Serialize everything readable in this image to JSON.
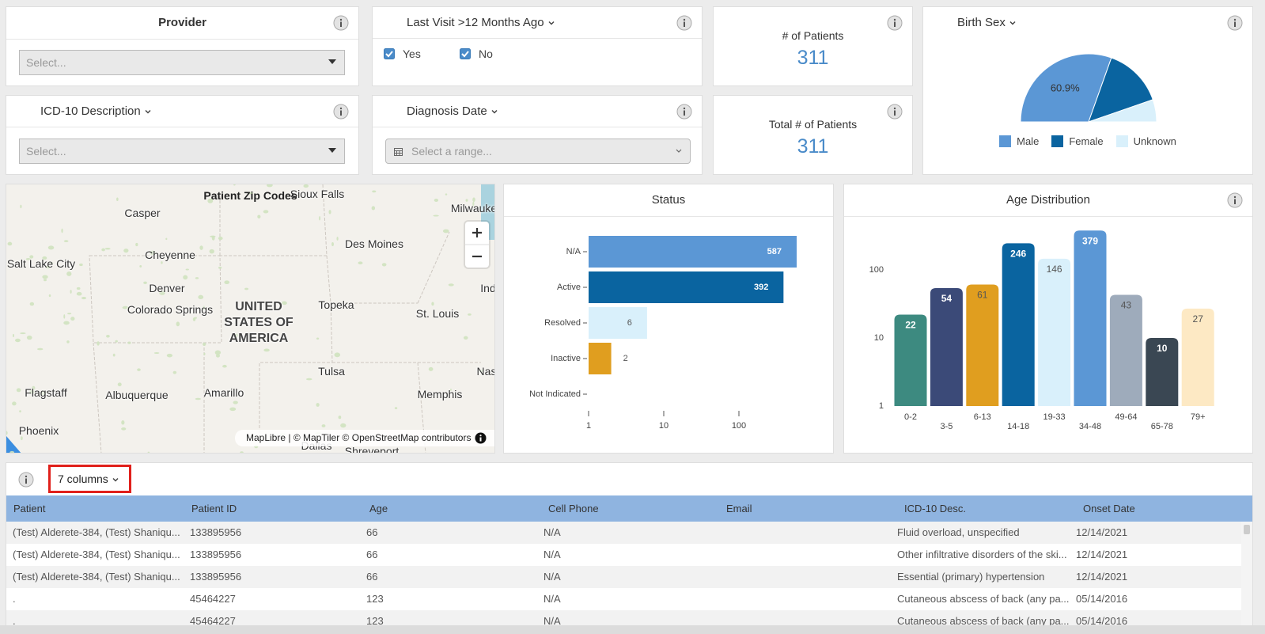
{
  "filters": {
    "provider": {
      "title": "Provider",
      "placeholder": "Select..."
    },
    "last_visit": {
      "title": "Last Visit >12 Months Ago",
      "options": [
        "Yes",
        "No"
      ]
    },
    "icd10": {
      "title": "ICD-10 Description",
      "placeholder": "Select..."
    },
    "diagnosis_date": {
      "title": "Diagnosis Date",
      "placeholder": "Select a range..."
    }
  },
  "kpis": [
    {
      "label": "# of Patients",
      "value": 311
    },
    {
      "label": "Total # of Patients",
      "value": 311
    }
  ],
  "birth_sex": {
    "type": "pie",
    "title": "Birth Sex",
    "half": true,
    "categories": [
      "Male",
      "Female",
      "Unknown"
    ],
    "values": [
      60.9,
      28.5,
      10.6
    ],
    "value_labels": [
      "60.9%",
      null,
      null
    ],
    "colors": [
      "#5b97d5",
      "#0a64a0",
      "#d9f0fb"
    ]
  },
  "map": {
    "title": "Patient Zip Codes",
    "labels": [
      "Sioux Falls",
      "Casper",
      "Milwauke",
      "Cheyenne",
      "Des Moines",
      "Salt Lake City",
      "Denver",
      "Ind",
      "Colorado Springs",
      "UNITED STATES OF AMERICA",
      "Topeka",
      "St. Louis",
      "Tulsa",
      "Nas",
      "Flagstaff",
      "Albuquerque",
      "Amarillo",
      "Memphis",
      "Phoenix",
      "Dallas",
      "Shreveport"
    ],
    "attribution": "MapLibre | © MapTiler © OpenStreetMap contributors"
  },
  "status": {
    "type": "bar",
    "orientation": "horizontal",
    "title": "Status",
    "log_scale": true,
    "categories": [
      "N/A",
      "Active",
      "Resolved",
      "Inactive",
      "Not Indicated"
    ],
    "values": [
      587,
      392,
      6,
      2,
      null
    ],
    "colors": [
      "#5b97d5",
      "#0a64a0",
      "#d9f0fb",
      "#e09e1f",
      "#9eabbb"
    ],
    "xlim": [
      1,
      1000
    ],
    "xticks": [
      1,
      10,
      100
    ]
  },
  "age_distribution": {
    "type": "bar",
    "title": "Age Distribution",
    "log_scale": true,
    "categories": [
      "0-2",
      "3-5",
      "6-13",
      "14-18",
      "19-33",
      "34-48",
      "49-64",
      "65-78",
      "79+"
    ],
    "values": [
      22,
      54,
      61,
      246,
      146,
      379,
      43,
      10,
      27
    ],
    "colors": [
      "#3d8a80",
      "#3b4a78",
      "#e09e1f",
      "#0a64a0",
      "#d9f0fb",
      "#5b97d5",
      "#9eabbb",
      "#3a4753",
      "#fde9c4"
    ],
    "ylim": [
      1,
      1000
    ],
    "yticks": [
      1,
      10,
      100
    ]
  },
  "table": {
    "columns_button": "7 columns",
    "headers": [
      "Patient",
      "Patient ID",
      "Age",
      "Cell Phone",
      "Email",
      "ICD-10 Desc.",
      "Onset Date"
    ],
    "rows": [
      [
        "(Test) Alderete-384, (Test) Shaniqu...",
        "133895956",
        66,
        "N/A",
        null,
        "Fluid overload, unspecified",
        "12/14/2021"
      ],
      [
        "(Test) Alderete-384, (Test) Shaniqu...",
        "133895956",
        66,
        "N/A",
        null,
        "Other infiltrative disorders of the ski...",
        "12/14/2021"
      ],
      [
        "(Test) Alderete-384, (Test) Shaniqu...",
        "133895956",
        66,
        "N/A",
        null,
        "Essential (primary) hypertension",
        "12/14/2021"
      ],
      [
        ".",
        "45464227",
        123,
        "N/A",
        null,
        "Cutaneous abscess of back (any pa...",
        "05/14/2016"
      ],
      [
        ".",
        "45464227",
        123,
        "N/A",
        null,
        "Cutaneous abscess of back (any pa...",
        "05/14/2016"
      ]
    ]
  }
}
